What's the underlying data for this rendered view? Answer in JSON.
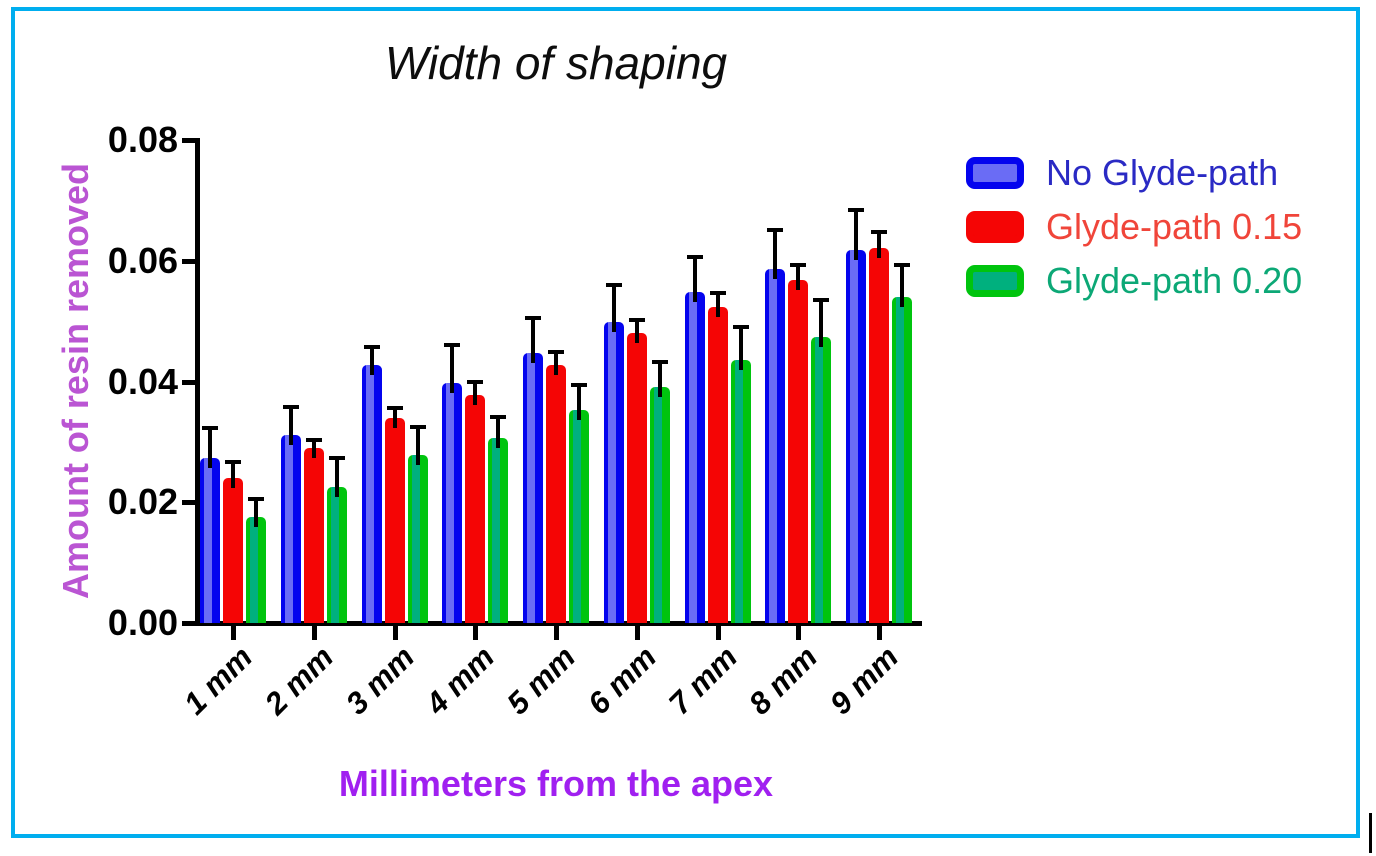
{
  "figure": {
    "border_color": "#00AEEF",
    "background": "#ffffff"
  },
  "chart_data": {
    "type": "bar",
    "title": "Width of shaping",
    "xlabel": "Millimeters from the apex",
    "ylabel": "Amount of resin removed",
    "xlabel_color": "#A020F0",
    "ylabel_color": "#BA55D3",
    "axis_color": "#000000",
    "error_bar_color": "#000000",
    "grid": false,
    "legend_position": "right",
    "ylim": [
      0,
      0.08
    ],
    "yticks": [
      0,
      0.02,
      0.04,
      0.06,
      0.08
    ],
    "ytick_labels": [
      "0.00",
      "0.02",
      "0.04",
      "0.06",
      "0.08"
    ],
    "categories": [
      "1 mm",
      "2 mm",
      "3 mm",
      "4 mm",
      "5 mm",
      "6 mm",
      "7 mm",
      "8 mm",
      "9 mm"
    ],
    "error_bars": "upper only, capped",
    "series": [
      {
        "name": "No Glyde-path",
        "edge_color": "#0404EE",
        "fill_color": "#6A6CF5",
        "legend_text_color": "#2A2AC4",
        "values": [
          0.0273,
          0.0311,
          0.0427,
          0.0397,
          0.0447,
          0.0499,
          0.0548,
          0.0586,
          0.0618
        ],
        "errors": [
          0.005,
          0.0047,
          0.003,
          0.0063,
          0.0058,
          0.0061,
          0.0058,
          0.0065,
          0.0066
        ]
      },
      {
        "name": "Glyde-path 0.15",
        "edge_color": "#F50505",
        "fill_color": "#F50505",
        "legend_text_color": "#F0453A",
        "values": [
          0.024,
          0.029,
          0.034,
          0.0378,
          0.0427,
          0.048,
          0.0523,
          0.0568,
          0.0621
        ],
        "errors": [
          0.0027,
          0.0013,
          0.0016,
          0.0021,
          0.0022,
          0.0022,
          0.0023,
          0.0025,
          0.0026
        ]
      },
      {
        "name": "Glyde-path 0.20",
        "edge_color": "#00C40E",
        "fill_color": "#00B07E",
        "legend_text_color": "#0CA876",
        "values": [
          0.0176,
          0.0225,
          0.0278,
          0.0306,
          0.0353,
          0.0391,
          0.0436,
          0.0474,
          0.054
        ],
        "errors": [
          0.003,
          0.0048,
          0.0047,
          0.0035,
          0.0041,
          0.0041,
          0.0054,
          0.0061,
          0.0053
        ]
      }
    ]
  }
}
